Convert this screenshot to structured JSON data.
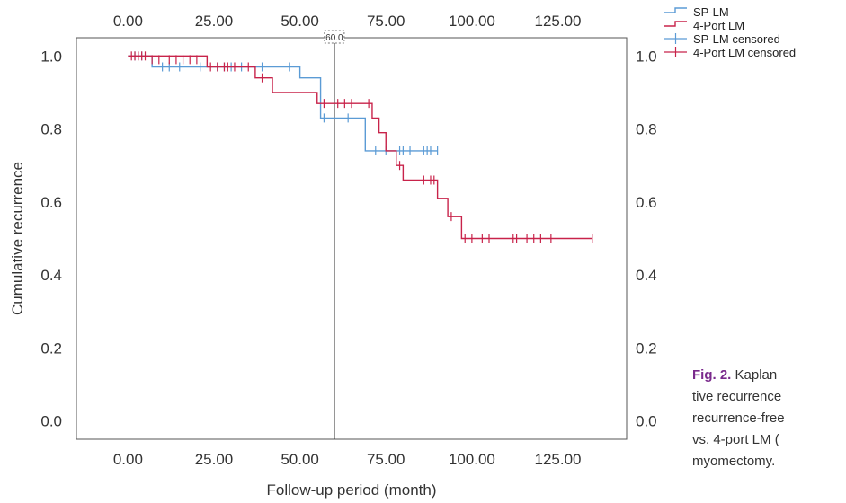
{
  "chart_data": {
    "type": "line",
    "subtype": "kaplan-meier step curve",
    "xlabel": "Follow-up period (month)",
    "ylabel": "Cumulative recurrence",
    "xlim": [
      -15,
      145
    ],
    "ylim": [
      -0.05,
      1.05
    ],
    "x_ticks": [
      "0.00",
      "25.00",
      "50.00",
      "75.00",
      "100.00",
      "125.00"
    ],
    "y_ticks": [
      "0.0",
      "0.2",
      "0.4",
      "0.6",
      "0.8",
      "1.0"
    ],
    "grid": false,
    "legend_position": "top-right (outside plot)",
    "reference_line": {
      "x": 60,
      "label": "60.0"
    },
    "series": [
      {
        "name": "SP-LM",
        "color": "#5b9bd5",
        "steps": [
          [
            0,
            1.0
          ],
          [
            7,
            0.97
          ],
          [
            50,
            0.94
          ],
          [
            56,
            0.83
          ],
          [
            69,
            0.74
          ],
          [
            90,
            0.74
          ]
        ],
        "censored": [
          [
            2,
            1.0
          ],
          [
            4,
            1.0
          ],
          [
            10,
            0.97
          ],
          [
            12,
            0.97
          ],
          [
            15,
            0.97
          ],
          [
            21,
            0.97
          ],
          [
            26,
            0.97
          ],
          [
            28,
            0.97
          ],
          [
            30,
            0.97
          ],
          [
            33,
            0.97
          ],
          [
            39,
            0.97
          ],
          [
            47,
            0.97
          ],
          [
            57,
            0.83
          ],
          [
            64,
            0.83
          ],
          [
            72,
            0.74
          ],
          [
            75,
            0.74
          ],
          [
            79,
            0.74
          ],
          [
            80,
            0.74
          ],
          [
            82,
            0.74
          ],
          [
            86,
            0.74
          ],
          [
            87,
            0.74
          ],
          [
            88,
            0.74
          ],
          [
            90,
            0.74
          ]
        ]
      },
      {
        "name": "4-Port LM",
        "color": "#c8234a",
        "steps": [
          [
            0,
            1.0
          ],
          [
            23,
            0.97
          ],
          [
            37,
            0.94
          ],
          [
            42,
            0.9
          ],
          [
            55,
            0.87
          ],
          [
            71,
            0.83
          ],
          [
            73,
            0.79
          ],
          [
            75,
            0.74
          ],
          [
            78,
            0.7
          ],
          [
            80,
            0.66
          ],
          [
            90,
            0.61
          ],
          [
            93,
            0.56
          ],
          [
            97,
            0.5
          ],
          [
            135,
            0.5
          ]
        ],
        "censored": [
          [
            1,
            1.0
          ],
          [
            2,
            1.0
          ],
          [
            3,
            1.0
          ],
          [
            4,
            1.0
          ],
          [
            5,
            1.0
          ],
          [
            7,
            0.99
          ],
          [
            9,
            0.99
          ],
          [
            12,
            0.99
          ],
          [
            14,
            0.99
          ],
          [
            16,
            0.99
          ],
          [
            18,
            0.99
          ],
          [
            20,
            0.99
          ],
          [
            24,
            0.97
          ],
          [
            26,
            0.97
          ],
          [
            28,
            0.97
          ],
          [
            29,
            0.97
          ],
          [
            31,
            0.97
          ],
          [
            35,
            0.97
          ],
          [
            39,
            0.94
          ],
          [
            57,
            0.87
          ],
          [
            61,
            0.87
          ],
          [
            63,
            0.87
          ],
          [
            65,
            0.87
          ],
          [
            70,
            0.87
          ],
          [
            79,
            0.7
          ],
          [
            86,
            0.66
          ],
          [
            88,
            0.66
          ],
          [
            89,
            0.66
          ],
          [
            94,
            0.56
          ],
          [
            98,
            0.5
          ],
          [
            100,
            0.5
          ],
          [
            103,
            0.5
          ],
          [
            105,
            0.5
          ],
          [
            112,
            0.5
          ],
          [
            113,
            0.5
          ],
          [
            116,
            0.5
          ],
          [
            118,
            0.5
          ],
          [
            120,
            0.5
          ],
          [
            123,
            0.5
          ],
          [
            135,
            0.5
          ]
        ]
      }
    ],
    "legend": [
      {
        "label": "SP-LM",
        "kind": "step",
        "color": "#5b9bd5"
      },
      {
        "label": "4-Port LM",
        "kind": "step",
        "color": "#c8234a"
      },
      {
        "label": "SP-LM censored",
        "kind": "censor",
        "color": "#5b9bd5"
      },
      {
        "label": "4-Port LM censored",
        "kind": "censor",
        "color": "#c8234a"
      }
    ]
  },
  "caption": {
    "label": "Fig. 2.",
    "lines": [
      "Kaplan",
      "tive recurrence",
      "recurrence-free",
      "vs. 4-port LM (",
      "myomectomy."
    ]
  },
  "colors": {
    "caption_label": "#7a2a8c",
    "axis": "#555555",
    "reference_line": "#222222"
  }
}
